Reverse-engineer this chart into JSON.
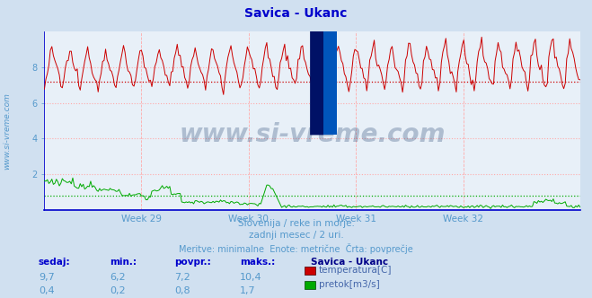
{
  "title": "Savica - Ukanc",
  "title_color": "#0000cc",
  "bg_color": "#d0e0f0",
  "plot_bg_color": "#e8f0f8",
  "grid_color": "#ffaaaa",
  "x_tick_labels": [
    "Week 29",
    "Week 30",
    "Week 31",
    "Week 32"
  ],
  "y_min": 0,
  "y_max": 10,
  "y_ticks": [
    2,
    4,
    6,
    8
  ],
  "temp_avg": 7.2,
  "flow_avg": 0.8,
  "temp_min": 6.2,
  "temp_max": 10.4,
  "temp_current": 9.7,
  "flow_min": 0.2,
  "flow_max": 1.7,
  "flow_current": 0.4,
  "subtitle1": "Slovenija / reke in morje.",
  "subtitle2": "zadnji mesec / 2 uri.",
  "subtitle3": "Meritve: minimalne  Enote: metrične  Črta: povprečje",
  "subtitle_color": "#5599cc",
  "watermark": "www.si-vreme.com",
  "watermark_color": "#1a3a6a",
  "watermark_alpha": 0.28,
  "ylabel_text": "www.si-vreme.com",
  "ylabel_color": "#5599cc",
  "temp_color": "#cc0000",
  "flow_color": "#00aa00",
  "axis_color": "#0000cc",
  "tick_color": "#5599cc",
  "legend_header": "Savica - Ukanc",
  "legend_header_color": "#000088",
  "legend_label_color": "#4466aa",
  "table_header_color": "#0000cc",
  "table_value_color": "#5599cc"
}
